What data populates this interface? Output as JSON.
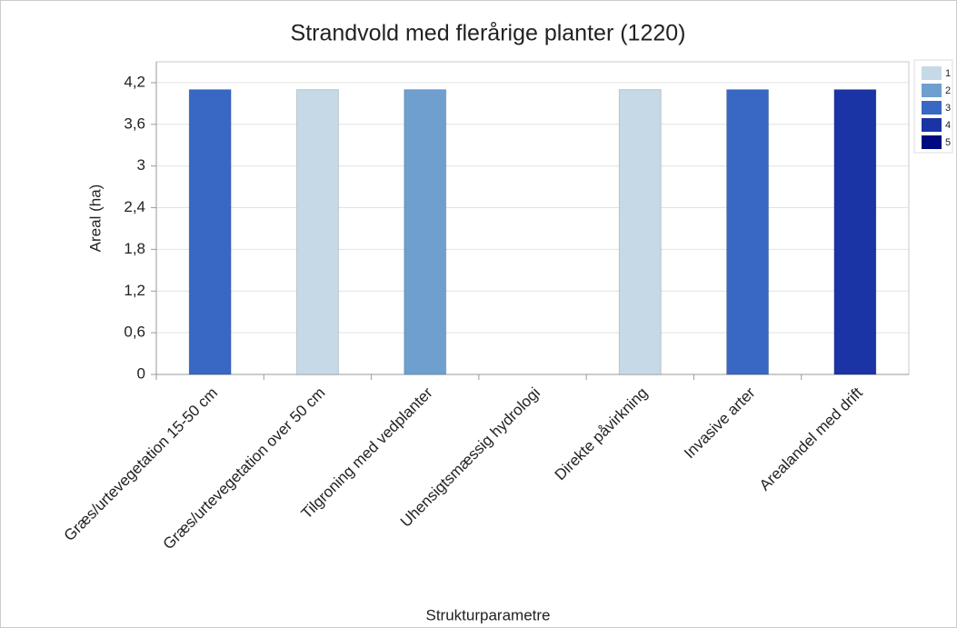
{
  "chart_data": {
    "type": "bar",
    "stacked": true,
    "title": "Strandvold med flerårige planter (1220)",
    "xlabel": "Strukturparametre",
    "ylabel": "Areal (ha)",
    "categories": [
      "Græs/urtevegetation 15-50 cm",
      "Græs/urtevegetation over 50 cm",
      "Tilgroning med vedplanter",
      "Uhensigtsmæssig hydrologi",
      "Direkte påvirkning",
      "Invasive arter",
      "Arealandel med drift"
    ],
    "series": [
      {
        "name": "1",
        "color": "#c5d9e6",
        "values": [
          null,
          4.1,
          null,
          null,
          4.1,
          null,
          null
        ]
      },
      {
        "name": "2",
        "color": "#6e9fcf",
        "values": [
          null,
          null,
          4.1,
          null,
          null,
          null,
          null
        ]
      },
      {
        "name": "3",
        "color": "#3867c4",
        "values": [
          4.1,
          null,
          null,
          null,
          null,
          4.1,
          null
        ]
      },
      {
        "name": "4",
        "color": "#1a34a6",
        "values": [
          null,
          null,
          null,
          null,
          null,
          null,
          4.1
        ]
      },
      {
        "name": "5",
        "color": "#000a80",
        "values": [
          null,
          null,
          null,
          null,
          null,
          null,
          null
        ]
      }
    ],
    "ylim": [
      0,
      4.5
    ],
    "yticks": [
      0,
      {
        "value": 0.6,
        "label": "0,6"
      },
      {
        "value": 1.2,
        "label": "1,2"
      },
      {
        "value": 1.8,
        "label": "1,8"
      },
      {
        "value": 2.4,
        "label": "2,4"
      },
      3,
      {
        "value": 3.6,
        "label": "3,6"
      },
      {
        "value": 4.2,
        "label": "4,2"
      }
    ],
    "grid": true,
    "legend": "right"
  }
}
